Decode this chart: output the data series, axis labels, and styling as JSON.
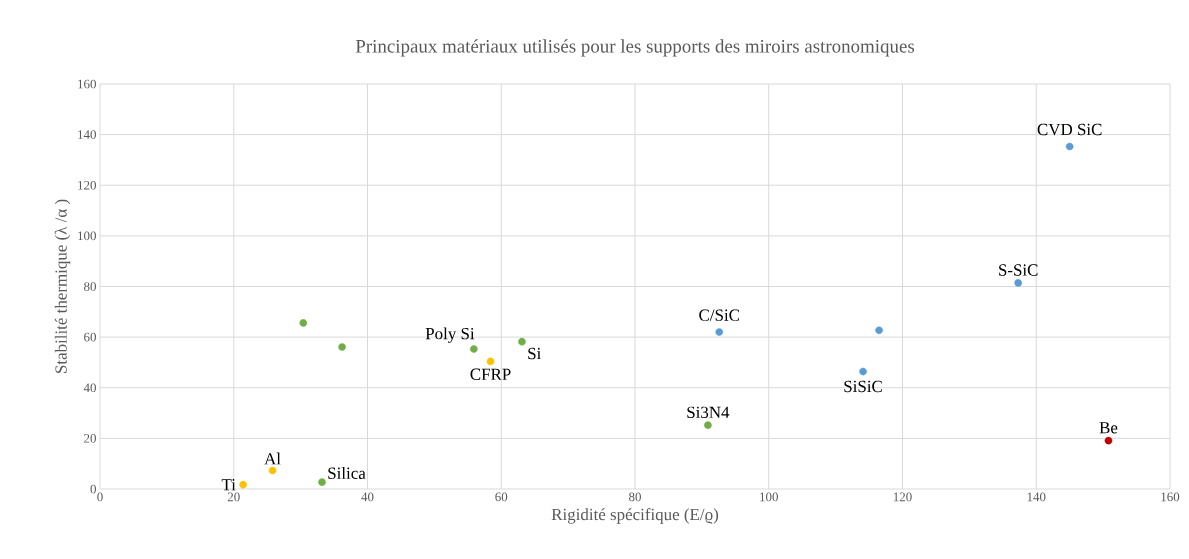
{
  "chart_data": {
    "type": "scatter",
    "title": "Principaux matériaux utilisés pour les supports des miroirs astronomiques",
    "xlabel": "Rigidité spécifique (E/ϱ)",
    "ylabel": "Stabilité thermique (λ /α )",
    "xlim": [
      0,
      160
    ],
    "ylim": [
      0,
      160
    ],
    "xticks": [
      0,
      20,
      40,
      60,
      80,
      100,
      120,
      140,
      160
    ],
    "yticks": [
      0,
      20,
      40,
      60,
      80,
      100,
      120,
      140,
      160
    ],
    "grid": true,
    "series": [
      {
        "color": "#70ad47",
        "x": [
          33.2,
          30.4,
          36.2,
          55.9,
          63.1,
          90.9
        ],
        "values": [
          2.7,
          65.6,
          56.1,
          55.3,
          58.2,
          25.2
        ]
      },
      {
        "color": "#ffc000",
        "x": [
          21.4,
          25.8,
          58.4
        ],
        "values": [
          1.7,
          7.3,
          50.4
        ]
      },
      {
        "color": "#5b9bd5",
        "x": [
          92.6,
          114.1,
          116.5,
          137.3,
          145.0
        ],
        "values": [
          62.0,
          46.4,
          62.7,
          81.4,
          135.3
        ]
      },
      {
        "color": "#c00000",
        "x": [
          150.8
        ],
        "values": [
          19.1
        ]
      }
    ],
    "annotations": [
      {
        "text": "Ti",
        "x": 21.4,
        "y": 1.7
      },
      {
        "text": "Al",
        "x": 25.8,
        "y": 7.3
      },
      {
        "text": "Silica",
        "x": 33.2,
        "y": 2.7
      },
      {
        "text": "Poly Si",
        "x": 55.9,
        "y": 55.3
      },
      {
        "text": "CFRP",
        "x": 58.4,
        "y": 50.4
      },
      {
        "text": "Si",
        "x": 63.1,
        "y": 58.2
      },
      {
        "text": "Si3N4",
        "x": 90.9,
        "y": 25.2
      },
      {
        "text": "C/SiC",
        "x": 92.6,
        "y": 62.0
      },
      {
        "text": "SiSiC",
        "x": 114.1,
        "y": 46.4
      },
      {
        "text": "S-SiC",
        "x": 137.3,
        "y": 81.4
      },
      {
        "text": "CVD SiC",
        "x": 145.0,
        "y": 135.3
      },
      {
        "text": "Be",
        "x": 150.8,
        "y": 19.1
      }
    ]
  }
}
